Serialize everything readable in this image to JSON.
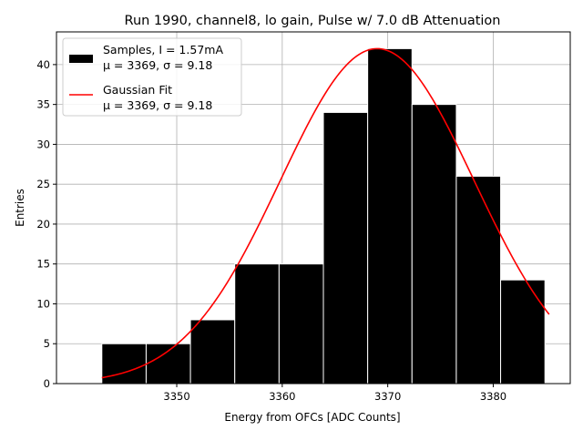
{
  "chart_data": {
    "type": "bar",
    "title": "Run 1990, channel8, lo gain, Pulse w/ 7.0 dB Attenuation",
    "xlabel": "Energy from OFCs [ADC Counts]",
    "ylabel": "Entries",
    "xlim": [
      3338.6,
      3387.3
    ],
    "ylim": [
      0,
      44.1
    ],
    "xticks": [
      3350,
      3360,
      3370,
      3380
    ],
    "yticks": [
      0,
      5,
      10,
      15,
      20,
      25,
      30,
      35,
      40
    ],
    "grid": true,
    "legend_position": "top-left",
    "bin_edges": [
      3342.9,
      3347.1,
      3351.3,
      3355.5,
      3359.7,
      3363.9,
      3368.1,
      3372.3,
      3376.5,
      3380.7,
      3384.9
    ],
    "counts": [
      5,
      5,
      8,
      15,
      15,
      34,
      42,
      35,
      26,
      13
    ],
    "series": [
      {
        "name": "Samples, I = 1.57mA",
        "sub": "μ = 3369, σ = 9.18",
        "type": "histogram",
        "color": "#000000"
      },
      {
        "name": "Gaussian Fit",
        "sub": "μ = 3369, σ = 9.18",
        "type": "line",
        "color": "#ff0000",
        "mu": 3369.0,
        "sigma": 9.18,
        "amplitude": 42.0,
        "x_range": [
          3342.9,
          3385.3
        ]
      }
    ]
  }
}
